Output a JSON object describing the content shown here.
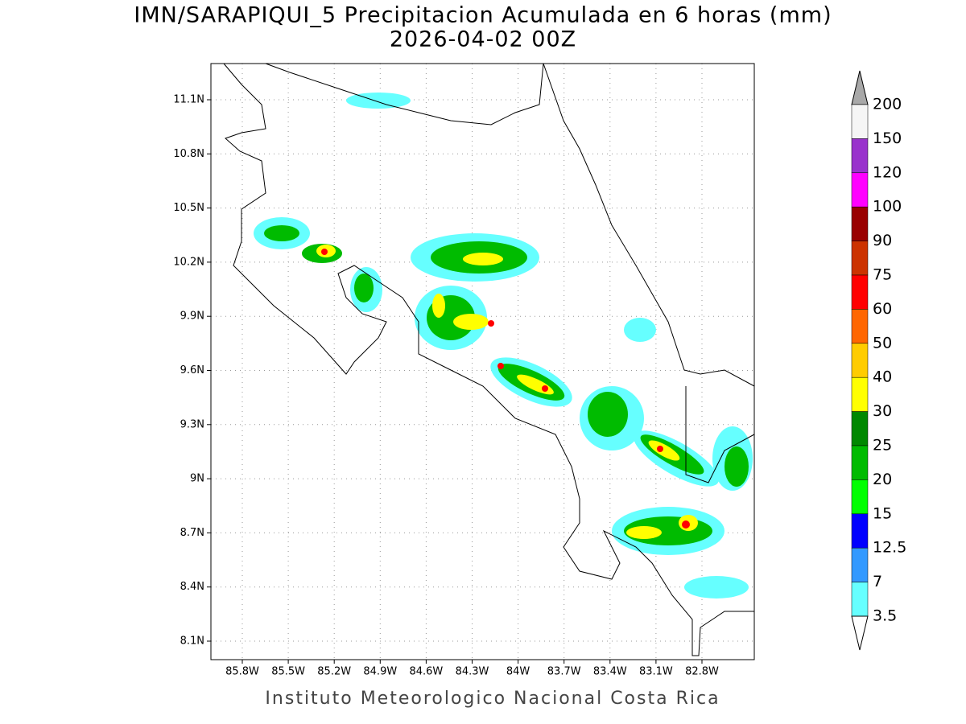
{
  "header": {
    "title": "IMN/SARAPIQUI_5 Precipitacion Acumulada en 6 horas (mm)",
    "subtitle": "2026-04-02 00Z"
  },
  "map": {
    "lat_ticks": [
      "11.1N",
      "10.8N",
      "10.5N",
      "10.2N",
      "9.9N",
      "9.6N",
      "9.3N",
      "9N",
      "8.7N",
      "8.4N",
      "8.1N"
    ],
    "lon_ticks": [
      "85.8W",
      "85.5W",
      "85.2W",
      "84.9W",
      "84.6W",
      "84.3W",
      "84W",
      "83.7W",
      "83.4W",
      "83.1W",
      "82.8W"
    ],
    "grid": true
  },
  "colorbar": {
    "labels": [
      "200",
      "150",
      "120",
      "100",
      "90",
      "75",
      "60",
      "50",
      "40",
      "30",
      "25",
      "20",
      "15",
      "12.5",
      "7",
      "3.5"
    ],
    "colors": [
      "#f5f5f5",
      "#9933cc",
      "#ff00ff",
      "#990000",
      "#cc3300",
      "#ff0000",
      "#ff6600",
      "#ffcc00",
      "#ffff00",
      "#008800",
      "#00bb00",
      "#00ff00",
      "#0000ff",
      "#3399ff",
      "#66ffff"
    ],
    "over_color": "#a8a8a8",
    "under_color": "#ffffff"
  },
  "footer": "Instituto Meteorologico Nacional Costa Rica"
}
